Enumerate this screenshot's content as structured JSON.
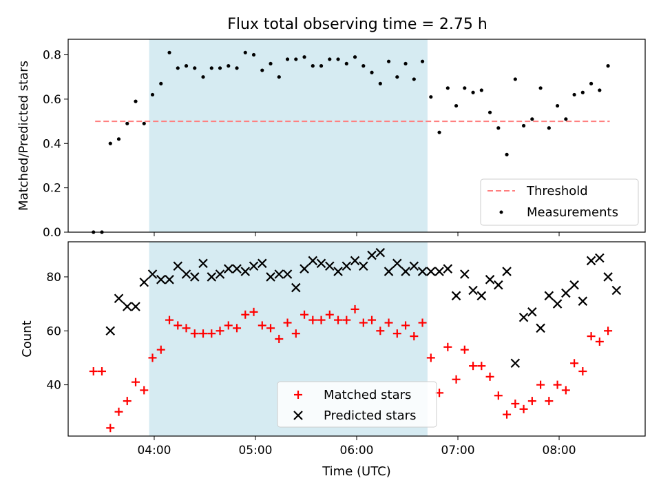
{
  "title": "Flux total observing time = 2.75 h",
  "colors": {
    "threshold": "#ff7f7f",
    "shade": "#add8e6",
    "matched": "#ff0000",
    "predicted": "#000000",
    "measurement": "#000000"
  },
  "chart_data": [
    {
      "type": "scatter",
      "panel": "top",
      "ylabel": "Matched/Predicted stars",
      "xlabel": "",
      "xlim": [
        "03:09",
        "08:51"
      ],
      "ylim": [
        0,
        0.87
      ],
      "yticks": [
        0.0,
        0.2,
        0.4,
        0.6,
        0.8
      ],
      "ytick_labels": [
        "0.0",
        "0.2",
        "0.4",
        "0.6",
        "0.8"
      ],
      "xticks": [
        "04:00",
        "05:00",
        "06:00",
        "07:00",
        "08:00"
      ],
      "shaded_region": [
        "03:57",
        "06:42"
      ],
      "grid": false,
      "legend_position": "lower right",
      "legend": [
        "Threshold",
        "Measurements"
      ],
      "threshold": {
        "name": "Threshold",
        "value": 0.5,
        "x_range": [
          "03:25",
          "08:30"
        ]
      },
      "series": [
        {
          "name": "Measurements",
          "x": [
            "03:24",
            "03:29",
            "03:34",
            "03:39",
            "03:44",
            "03:49",
            "03:54",
            "03:59",
            "04:04",
            "04:09",
            "04:14",
            "04:19",
            "04:24",
            "04:29",
            "04:34",
            "04:39",
            "04:44",
            "04:49",
            "04:54",
            "04:59",
            "05:04",
            "05:09",
            "05:14",
            "05:19",
            "05:24",
            "05:29",
            "05:34",
            "05:39",
            "05:44",
            "05:49",
            "05:54",
            "05:59",
            "06:04",
            "06:09",
            "06:14",
            "06:19",
            "06:24",
            "06:29",
            "06:34",
            "06:39",
            "06:44",
            "06:49",
            "06:54",
            "06:59",
            "07:04",
            "07:09",
            "07:14",
            "07:19",
            "07:24",
            "07:29",
            "07:34",
            "07:39",
            "07:44",
            "07:49",
            "07:54",
            "07:59",
            "08:04",
            "08:09",
            "08:14",
            "08:19",
            "08:24",
            "08:29"
          ],
          "y": [
            0.0,
            0.0,
            0.4,
            0.42,
            0.49,
            0.59,
            0.49,
            0.62,
            0.67,
            0.81,
            0.74,
            0.75,
            0.74,
            0.7,
            0.74,
            0.74,
            0.75,
            0.74,
            0.81,
            0.8,
            0.73,
            0.76,
            0.7,
            0.78,
            0.78,
            0.79,
            0.75,
            0.75,
            0.78,
            0.78,
            0.76,
            0.79,
            0.75,
            0.72,
            0.67,
            0.77,
            0.7,
            0.76,
            0.69,
            0.77,
            0.61,
            0.45,
            0.65,
            0.57,
            0.65,
            0.63,
            0.64,
            0.54,
            0.47,
            0.35,
            0.69,
            0.48,
            0.51,
            0.65,
            0.47,
            0.57,
            0.51,
            0.62,
            0.63,
            0.67,
            0.64,
            0.75
          ]
        }
      ]
    },
    {
      "type": "scatter",
      "panel": "bottom",
      "ylabel": "Count",
      "xlabel": "Time (UTC)",
      "xlim": [
        "03:09",
        "08:51"
      ],
      "ylim": [
        21,
        93
      ],
      "yticks": [
        40,
        60,
        80
      ],
      "ytick_labels": [
        "40",
        "60",
        "80"
      ],
      "xticks": [
        "04:00",
        "05:00",
        "06:00",
        "07:00",
        "08:00"
      ],
      "xtick_labels": [
        "04:00",
        "05:00",
        "06:00",
        "07:00",
        "08:00"
      ],
      "shaded_region": [
        "03:57",
        "06:42"
      ],
      "grid": false,
      "legend_position": "lower center",
      "legend": [
        "Matched stars",
        "Predicted stars"
      ],
      "series": [
        {
          "name": "Matched stars",
          "marker": "+",
          "x": [
            "03:24",
            "03:29",
            "03:34",
            "03:39",
            "03:44",
            "03:49",
            "03:54",
            "03:59",
            "04:04",
            "04:09",
            "04:14",
            "04:19",
            "04:24",
            "04:29",
            "04:34",
            "04:39",
            "04:44",
            "04:49",
            "04:54",
            "04:59",
            "05:04",
            "05:09",
            "05:14",
            "05:19",
            "05:24",
            "05:29",
            "05:34",
            "05:39",
            "05:44",
            "05:49",
            "05:54",
            "05:59",
            "06:04",
            "06:09",
            "06:14",
            "06:19",
            "06:24",
            "06:29",
            "06:34",
            "06:39",
            "06:44",
            "06:49",
            "06:54",
            "06:59",
            "07:04",
            "07:09",
            "07:14",
            "07:19",
            "07:24",
            "07:29",
            "07:34",
            "07:39",
            "07:44",
            "07:49",
            "07:54",
            "07:59",
            "08:04",
            "08:09",
            "08:14",
            "08:19",
            "08:24",
            "08:29"
          ],
          "y": [
            45,
            45,
            24,
            30,
            34,
            41,
            38,
            50,
            53,
            64,
            62,
            61,
            59,
            59,
            59,
            60,
            62,
            61,
            66,
            67,
            62,
            61,
            57,
            63,
            59,
            66,
            64,
            64,
            66,
            64,
            64,
            68,
            63,
            64,
            60,
            63,
            59,
            62,
            58,
            63,
            50,
            37,
            54,
            42,
            53,
            47,
            47,
            43,
            36,
            29,
            33,
            31,
            34,
            40,
            34,
            40,
            38,
            48,
            45,
            58,
            56,
            60
          ]
        },
        {
          "name": "Predicted stars",
          "marker": "x",
          "x": [
            "03:34",
            "03:39",
            "03:44",
            "03:49",
            "03:54",
            "03:59",
            "04:04",
            "04:09",
            "04:14",
            "04:19",
            "04:24",
            "04:29",
            "04:34",
            "04:39",
            "04:44",
            "04:49",
            "04:54",
            "04:59",
            "05:04",
            "05:09",
            "05:14",
            "05:19",
            "05:24",
            "05:29",
            "05:34",
            "05:39",
            "05:44",
            "05:49",
            "05:54",
            "05:59",
            "06:04",
            "06:09",
            "06:14",
            "06:19",
            "06:24",
            "06:29",
            "06:34",
            "06:39",
            "06:44",
            "06:49",
            "06:54",
            "06:59",
            "07:04",
            "07:09",
            "07:14",
            "07:19",
            "07:24",
            "07:29",
            "07:34",
            "07:39",
            "07:44",
            "07:49",
            "07:54",
            "07:59",
            "08:04",
            "08:09",
            "08:14",
            "08:19",
            "08:24",
            "08:29",
            "08:34"
          ],
          "y": [
            60,
            72,
            69,
            69,
            78,
            81,
            79,
            79,
            84,
            81,
            80,
            85,
            80,
            81,
            83,
            83,
            82,
            84,
            85,
            80,
            81,
            81,
            76,
            83,
            86,
            85,
            84,
            82,
            84,
            86,
            84,
            88,
            89,
            82,
            85,
            82,
            84,
            82,
            82,
            82,
            83,
            73,
            81,
            75,
            73,
            79,
            77,
            82,
            48,
            65,
            67,
            61,
            73,
            70,
            74,
            77,
            71,
            86,
            87,
            80,
            75
          ]
        }
      ],
      "extra_points_note": ""
    }
  ]
}
